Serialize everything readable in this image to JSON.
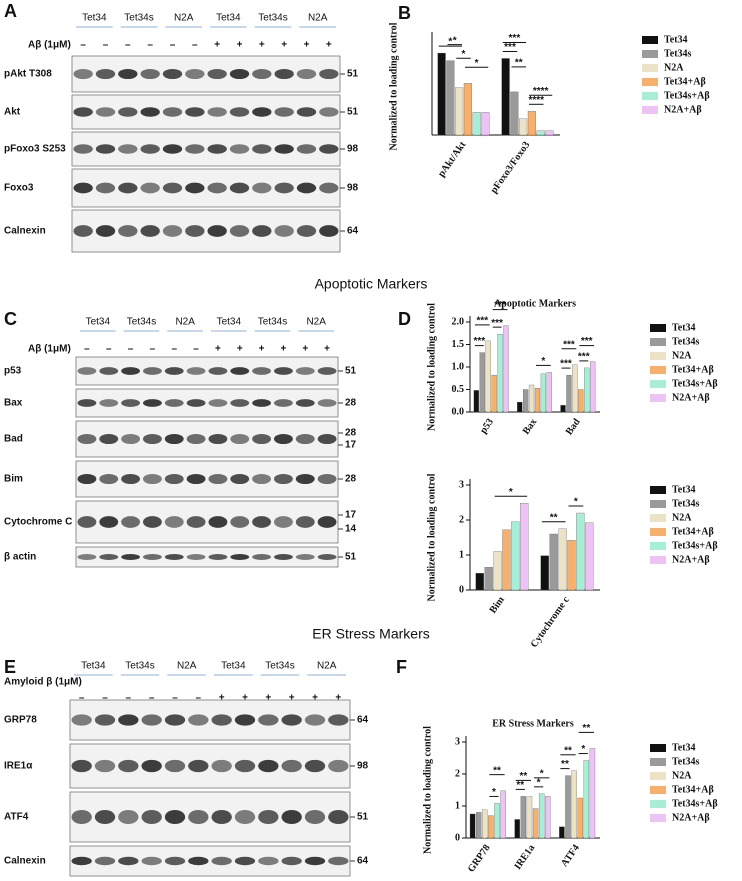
{
  "panel_labels": [
    "A",
    "B",
    "C",
    "D",
    "E",
    "F"
  ],
  "section_titles": [
    "Apoptotic Markers",
    "ER Stress Markers"
  ],
  "blots": [
    {
      "groups": [
        "Tet34",
        "Tet34s",
        "N2A",
        "Tet34",
        "Tet34s",
        "N2A"
      ],
      "treatment": "Aβ (1μM)",
      "signs": [
        "–",
        "–",
        "–",
        "–",
        "–",
        "–",
        "+",
        "+",
        "+",
        "+",
        "+",
        "+"
      ],
      "rows": [
        {
          "label": "pAkt T308",
          "markers": [
            "51"
          ]
        },
        {
          "label": "Akt",
          "markers": [
            "51"
          ]
        },
        {
          "label": "pFoxo3 S253",
          "markers": [
            "98"
          ]
        },
        {
          "label": "Foxo3",
          "markers": [
            "98"
          ]
        },
        {
          "label": "Calnexin",
          "markers": [
            "64"
          ]
        }
      ]
    },
    {
      "groups": [
        "Tet34",
        "Tet34s",
        "N2A",
        "Tet34",
        "Tet34s",
        "N2A"
      ],
      "treatment": "Aβ (1μM)",
      "signs": [
        "–",
        "–",
        "–",
        "–",
        "–",
        "–",
        "+",
        "+",
        "+",
        "+",
        "+",
        "+"
      ],
      "rows": [
        {
          "label": "p53",
          "markers": [
            "51"
          ]
        },
        {
          "label": "Bax",
          "markers": [
            "28"
          ]
        },
        {
          "label": "Bad",
          "markers": [
            "28",
            "17"
          ]
        },
        {
          "label": "Bim",
          "markers": [
            "28"
          ]
        },
        {
          "label": "Cytochrome C",
          "markers": [
            "17",
            "14"
          ]
        },
        {
          "label": "β actin",
          "markers": [
            "51"
          ]
        }
      ]
    },
    {
      "groups": [
        "Tet34",
        "Tet34s",
        "N2A",
        "Tet34",
        "Tet34s",
        "N2A"
      ],
      "treatment": "Amyloid β (1μM)",
      "signs": [
        "–",
        "–",
        "–",
        "–",
        "–",
        "–",
        "+",
        "+",
        "+",
        "+",
        "+",
        "+"
      ],
      "rows": [
        {
          "label": "GRP78",
          "markers": [
            "64"
          ]
        },
        {
          "label": "IRE1α",
          "markers": [
            "98"
          ]
        },
        {
          "label": "ATF4",
          "markers": [
            "51"
          ]
        },
        {
          "label": "Calnexin",
          "markers": [
            "64"
          ]
        }
      ]
    }
  ],
  "chart_data": [
    {
      "type": "bar",
      "y_label": "Normalized to loading control",
      "categories": [
        "pAkt/Akt",
        "pFoxo3/Foxo3"
      ],
      "ylim": [
        0,
        0.9
      ],
      "series": [
        {
          "name": "Tet34",
          "color": "#111111",
          "values": [
            0.76,
            0.71
          ]
        },
        {
          "name": "Tet34s",
          "color": "#9a9a9a",
          "values": [
            0.69,
            0.4
          ]
        },
        {
          "name": "N2A",
          "color": "#ece3c6",
          "values": [
            0.44,
            0.15
          ]
        },
        {
          "name": "Tet34+Aβ",
          "color": "#f7b06b",
          "values": [
            0.48,
            0.22
          ]
        },
        {
          "name": "Tet34s+Aβ",
          "color": "#a6efd6",
          "values": [
            0.21,
            0.04
          ]
        },
        {
          "name": "N2A+Aβ",
          "color": "#edc2f5",
          "values": [
            0.21,
            0.04
          ]
        }
      ],
      "annotations": [
        {
          "text": "*",
          "category": 0,
          "from": 0,
          "to": 2
        },
        {
          "text": "*",
          "category": 0,
          "from": 1,
          "to": 2
        },
        {
          "text": "*",
          "category": 0,
          "from": 2,
          "to": 3
        },
        {
          "text": "*",
          "category": 0,
          "from": 3,
          "to": 5
        },
        {
          "text": "***",
          "category": 1,
          "from": 0,
          "to": 1
        },
        {
          "text": "***",
          "category": 1,
          "from": 0,
          "to": 2
        },
        {
          "text": "**",
          "category": 1,
          "from": 1,
          "to": 2
        },
        {
          "text": "****",
          "category": 1,
          "from": 3,
          "to": 4
        },
        {
          "text": "****",
          "category": 1,
          "from": 3,
          "to": 5
        }
      ]
    },
    {
      "type": "bar",
      "title": "Apoptotic Markers",
      "y_label": "Normalized to loading control",
      "categories": [
        "p53",
        "Bax",
        "Bad"
      ],
      "ylim": [
        0,
        2
      ],
      "yticks": [
        {
          "value": 0,
          "label": "0.0"
        },
        {
          "value": 0.5,
          "label": "0.5"
        },
        {
          "value": 1,
          "label": "1.0"
        },
        {
          "value": 1.5,
          "label": "1.5"
        },
        {
          "value": 2,
          "label": "2.0"
        }
      ],
      "series": [
        {
          "name": "Tet34",
          "color": "#111111",
          "values": [
            0.48,
            0.22,
            0.15
          ]
        },
        {
          "name": "Tet34s",
          "color": "#9a9a9a",
          "values": [
            1.32,
            0.5,
            0.82
          ]
        },
        {
          "name": "N2A",
          "color": "#ece3c6",
          "values": [
            1.58,
            0.6,
            1.05
          ]
        },
        {
          "name": "Tet34+Aβ",
          "color": "#f7b06b",
          "values": [
            0.82,
            0.53,
            0.5
          ]
        },
        {
          "name": "Tet34s+Aβ",
          "color": "#a6efd6",
          "values": [
            1.73,
            0.85,
            0.98
          ]
        },
        {
          "name": "N2A+Aβ",
          "color": "#edc2f5",
          "values": [
            1.92,
            0.88,
            1.12
          ]
        }
      ],
      "annotations": [
        {
          "text": "***",
          "category": 0,
          "from": 0,
          "to": 1
        },
        {
          "text": "***",
          "category": 0,
          "from": 0,
          "to": 2
        },
        {
          "text": "***",
          "category": 0,
          "from": 3,
          "to": 4
        },
        {
          "text": "***",
          "category": 0,
          "from": 3,
          "to": 5
        },
        {
          "text": "*",
          "category": 1,
          "from": 3,
          "to": 5
        },
        {
          "text": "***",
          "category": 2,
          "from": 0,
          "to": 1
        },
        {
          "text": "***",
          "category": 2,
          "from": 0,
          "to": 2
        },
        {
          "text": "***",
          "category": 2,
          "from": 3,
          "to": 4
        },
        {
          "text": "***",
          "category": 2,
          "from": 3,
          "to": 5
        }
      ]
    },
    {
      "type": "bar",
      "y_label": "Normalized to loading control",
      "categories": [
        "Bim",
        "Cytochrome c"
      ],
      "ylim": [
        0,
        3
      ],
      "yticks": [
        0,
        1,
        2,
        3
      ],
      "series": [
        {
          "name": "Tet34",
          "color": "#111111",
          "values": [
            0.48,
            0.98
          ]
        },
        {
          "name": "Tet34s",
          "color": "#9a9a9a",
          "values": [
            0.65,
            1.6
          ]
        },
        {
          "name": "N2A",
          "color": "#ece3c6",
          "values": [
            1.1,
            1.75
          ]
        },
        {
          "name": "Tet34+Aβ",
          "color": "#f7b06b",
          "values": [
            1.72,
            1.42
          ]
        },
        {
          "name": "Tet34s+Aβ",
          "color": "#a6efd6",
          "values": [
            1.95,
            2.2
          ]
        },
        {
          "name": "N2A+Aβ",
          "color": "#edc2f5",
          "values": [
            2.48,
            1.92
          ]
        }
      ],
      "annotations": [
        {
          "text": "*",
          "category": 0,
          "from": 2,
          "to": 5
        },
        {
          "text": "**",
          "category": 1,
          "from": 0,
          "to": 2
        },
        {
          "text": "*",
          "category": 1,
          "from": 3,
          "to": 4
        }
      ]
    },
    {
      "type": "bar",
      "title": "ER Stress Markers",
      "y_label": "Normalized to loading control",
      "categories": [
        "GRP78",
        "IRE1a",
        "ATF4"
      ],
      "ylim": [
        0,
        3
      ],
      "yticks": [
        0,
        1,
        2,
        3
      ],
      "series": [
        {
          "name": "Tet34",
          "color": "#111111",
          "values": [
            0.75,
            0.58,
            0.35
          ]
        },
        {
          "name": "Tet34s",
          "color": "#9a9a9a",
          "values": [
            0.8,
            1.3,
            1.95
          ]
        },
        {
          "name": "N2A",
          "color": "#ece3c6",
          "values": [
            0.88,
            1.3,
            2.1
          ]
        },
        {
          "name": "Tet34+Aβ",
          "color": "#f7b06b",
          "values": [
            0.7,
            0.92,
            1.25
          ]
        },
        {
          "name": "Tet34s+Aβ",
          "color": "#a6efd6",
          "values": [
            1.08,
            1.38,
            2.42
          ]
        },
        {
          "name": "N2A+Aβ",
          "color": "#edc2f5",
          "values": [
            1.48,
            1.3,
            2.8
          ]
        }
      ],
      "annotations": [
        {
          "text": "*",
          "category": 0,
          "from": 3,
          "to": 4
        },
        {
          "text": "**",
          "category": 0,
          "from": 3,
          "to": 5
        },
        {
          "text": "**",
          "category": 1,
          "from": 0,
          "to": 1
        },
        {
          "text": "**",
          "category": 1,
          "from": 0,
          "to": 2
        },
        {
          "text": "*",
          "category": 1,
          "from": 3,
          "to": 4
        },
        {
          "text": "*",
          "category": 1,
          "from": 3,
          "to": 5
        },
        {
          "text": "**",
          "category": 2,
          "from": 0,
          "to": 1
        },
        {
          "text": "**",
          "category": 2,
          "from": 0,
          "to": 2
        },
        {
          "text": "*",
          "category": 2,
          "from": 3,
          "to": 4
        },
        {
          "text": "**",
          "category": 2,
          "from": 3,
          "to": 5
        }
      ]
    }
  ]
}
